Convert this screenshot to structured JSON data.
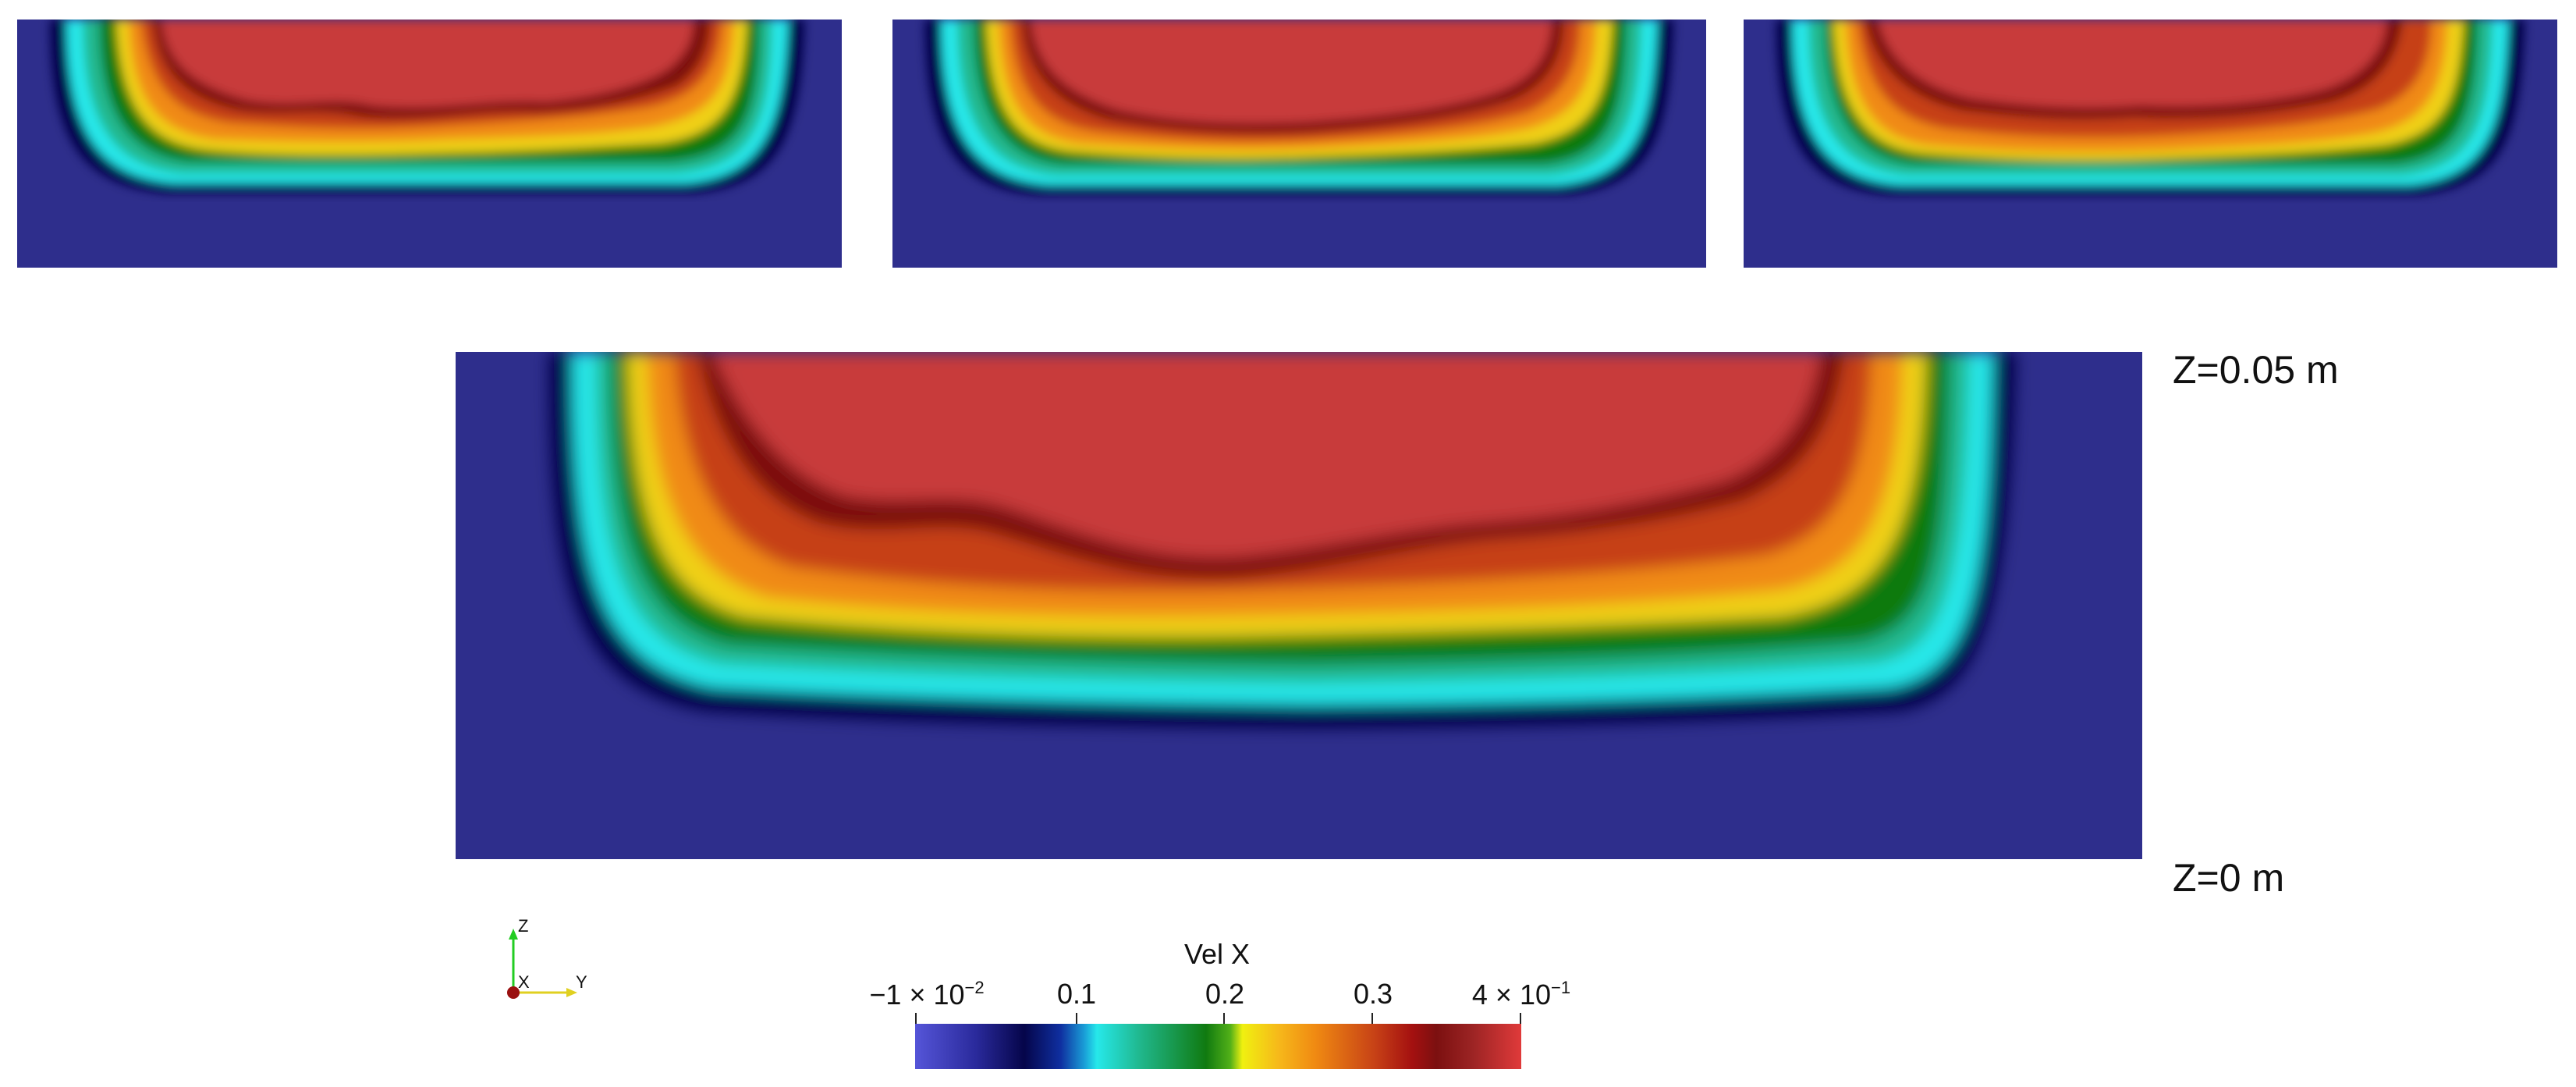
{
  "z_labels": {
    "top": "Z=0.05 m",
    "bottom": "Z=0 m"
  },
  "axes_triad": {
    "z": "Z",
    "x": "X",
    "y": "Y"
  },
  "colorbar": {
    "title": "Vel X",
    "min_label": {
      "base": "−1 × 10",
      "exp": "−2"
    },
    "mid_labels": [
      "0.1",
      "0.2",
      "0.3"
    ],
    "max_label": {
      "base": "4 × 10",
      "exp": "−1"
    },
    "range": [
      -0.01,
      0.4
    ],
    "ticks": [
      -0.01,
      0.1,
      0.2,
      0.3,
      0.4
    ]
  },
  "colors": {
    "background_low": "#2e2e8c",
    "dark_navy": "#06064a",
    "cyan": "#26e8ea",
    "green": "#107a10",
    "yellow": "#f0f010",
    "orange": "#f08a12",
    "dark_red": "#7c1010",
    "red": "#c83a3a"
  }
}
